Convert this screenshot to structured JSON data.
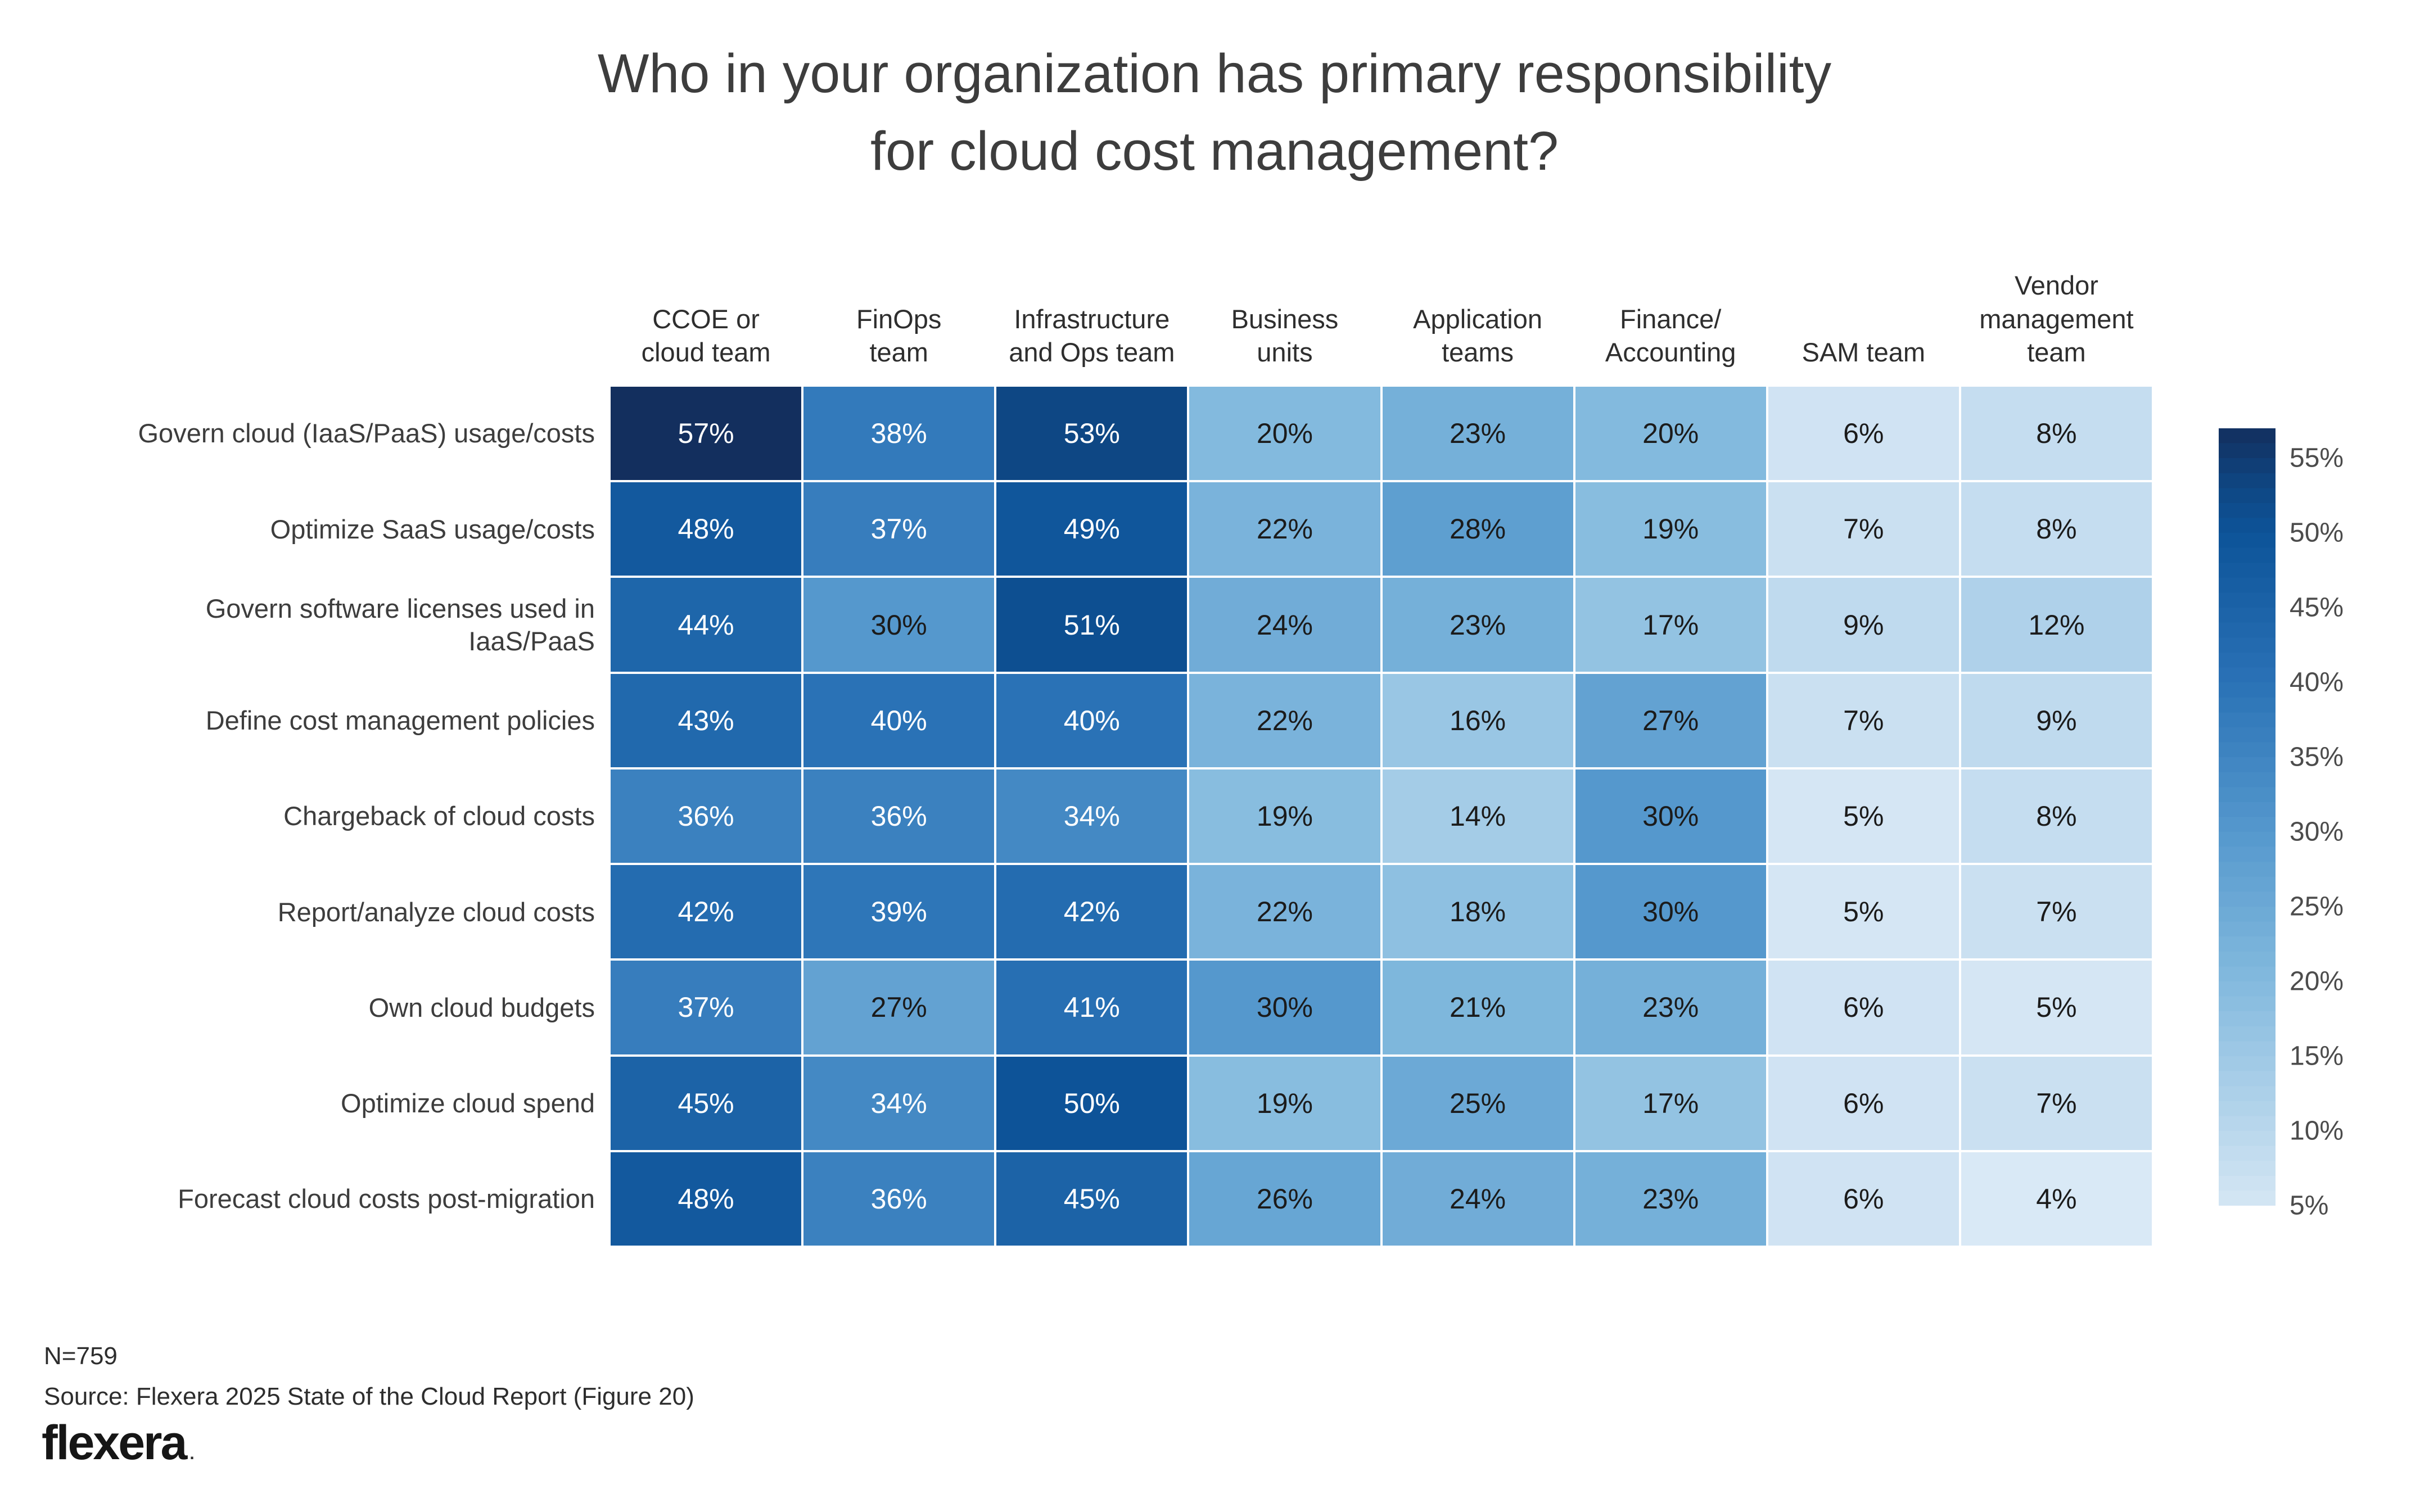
{
  "title": {
    "text": "Who in your organization has primary responsibility\nfor cloud cost management?"
  },
  "chart_data": {
    "type": "heatmap",
    "unit": "%",
    "columns": [
      "CCOE or\ncloud team",
      "FinOps\nteam",
      "Infrastructure\nand Ops team",
      "Business\nunits",
      "Application\nteams",
      "Finance/\nAccounting",
      "SAM team",
      "Vendor\nmanagement\nteam"
    ],
    "rows": [
      "Govern cloud (IaaS/PaaS) usage/costs",
      "Optimize SaaS usage/costs",
      "Govern software licenses used in\nIaaS/PaaS",
      "Define cost management policies",
      "Chargeback of cloud costs",
      "Report/analyze cloud costs",
      "Own cloud budgets",
      "Optimize cloud spend",
      "Forecast cloud costs post-migration"
    ],
    "values": [
      [
        57,
        38,
        53,
        20,
        23,
        20,
        6,
        8
      ],
      [
        48,
        37,
        49,
        22,
        28,
        19,
        7,
        8
      ],
      [
        44,
        30,
        51,
        24,
        23,
        17,
        9,
        12
      ],
      [
        43,
        40,
        40,
        22,
        16,
        27,
        7,
        9
      ],
      [
        36,
        36,
        34,
        19,
        14,
        30,
        5,
        8
      ],
      [
        42,
        39,
        42,
        22,
        18,
        30,
        5,
        7
      ],
      [
        37,
        27,
        41,
        30,
        21,
        23,
        6,
        5
      ],
      [
        45,
        34,
        50,
        19,
        25,
        17,
        6,
        7
      ],
      [
        48,
        36,
        45,
        26,
        24,
        23,
        6,
        4
      ]
    ],
    "colorbar": {
      "ticks": [
        "55%",
        "50%",
        "45%",
        "40%",
        "35%",
        "30%",
        "25%",
        "20%",
        "15%",
        "10%",
        "5%"
      ],
      "value_top": 57,
      "value_bottom": 5,
      "position": "right"
    },
    "palette": {
      "stops": [
        [
          4,
          "#d9e9f6"
        ],
        [
          5,
          "#d5e6f4"
        ],
        [
          20,
          "#83bade"
        ],
        [
          30,
          "#5598cd"
        ],
        [
          40,
          "#2a72b6"
        ],
        [
          50,
          "#0d5398"
        ],
        [
          53,
          "#0e4784"
        ],
        [
          57,
          "#132f5e"
        ]
      ],
      "light_text_threshold": 33,
      "dark_text_color": "#1b1b1b",
      "light_text_color": "#ffffff"
    },
    "grid": "white-gaps",
    "xlabel": "",
    "ylabel": ""
  },
  "footer": {
    "n": "N=759",
    "source": "Source: Flexera 2025 State of the Cloud Report (Figure 20)",
    "logo": "flexera",
    "logo_mark": "."
  }
}
